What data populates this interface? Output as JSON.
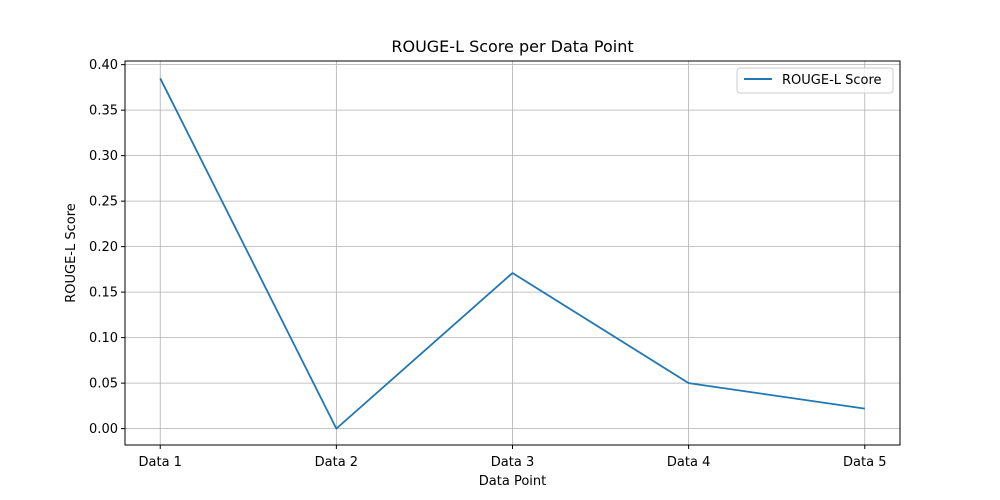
{
  "chart_data": {
    "type": "line",
    "title": "ROUGE-L Score per Data Point",
    "xlabel": "Data Point",
    "ylabel": "ROUGE-L Score",
    "categories": [
      "Data 1",
      "Data 2",
      "Data 3",
      "Data 4",
      "Data 5"
    ],
    "series": [
      {
        "name": "ROUGE-L Score",
        "values": [
          0.385,
          0.0,
          0.171,
          0.05,
          0.022
        ],
        "color": "#1f77b4"
      }
    ],
    "ylim": [
      -0.018,
      0.404
    ],
    "yticks": [
      0.0,
      0.05,
      0.1,
      0.15,
      0.2,
      0.25,
      0.3,
      0.35,
      0.4
    ],
    "ytick_labels": [
      "0.00",
      "0.05",
      "0.10",
      "0.15",
      "0.20",
      "0.25",
      "0.30",
      "0.35",
      "0.40"
    ],
    "grid": true,
    "legend_position": "top-right"
  }
}
